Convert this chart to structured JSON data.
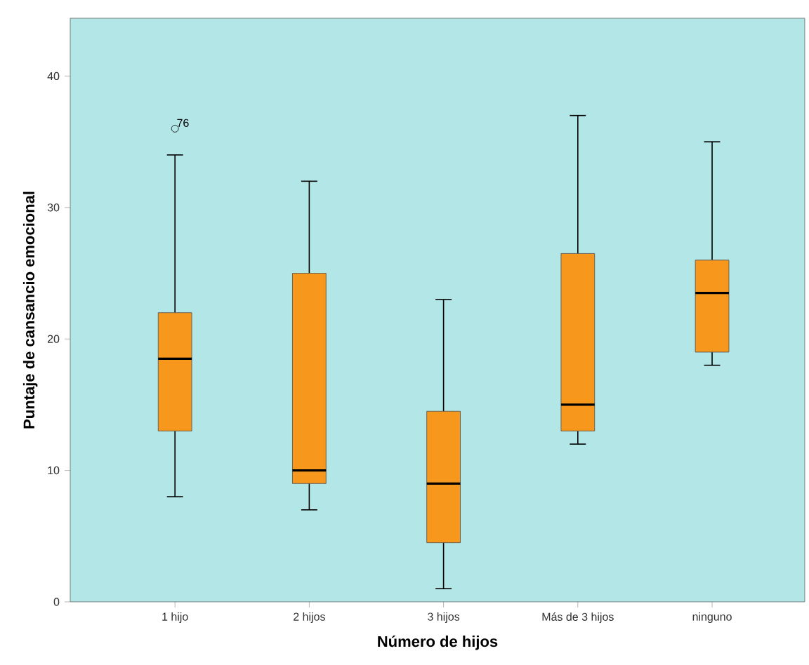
{
  "chart_data": {
    "type": "box",
    "xlabel": "Número de hijos",
    "ylabel": "Puntaje de cansancio emocional",
    "categories": [
      "1 hijo",
      "2 hijos",
      "3 hijos",
      "Más de 3 hijos",
      "ninguno"
    ],
    "color": "#f7981d",
    "boxes": [
      {
        "low": 8,
        "q1": 13,
        "median": 18.5,
        "q3": 22,
        "high": 34,
        "outliers": [
          36
        ]
      },
      {
        "low": 7,
        "q1": 9,
        "median": 10,
        "q3": 25,
        "high": 32
      },
      {
        "low": 1,
        "q1": 4.5,
        "median": 9,
        "q3": 14.5,
        "high": 23
      },
      {
        "low": 12,
        "q1": 13,
        "median": 15,
        "q3": 26.5,
        "high": 37
      },
      {
        "low": 18,
        "q1": 19,
        "median": 23.5,
        "q3": 26,
        "high": 35
      }
    ],
    "annotations": [
      "76"
    ],
    "ylim": [
      0,
      44.4
    ],
    "yticks": [
      0,
      10,
      20,
      30,
      40
    ],
    "grid": false
  }
}
